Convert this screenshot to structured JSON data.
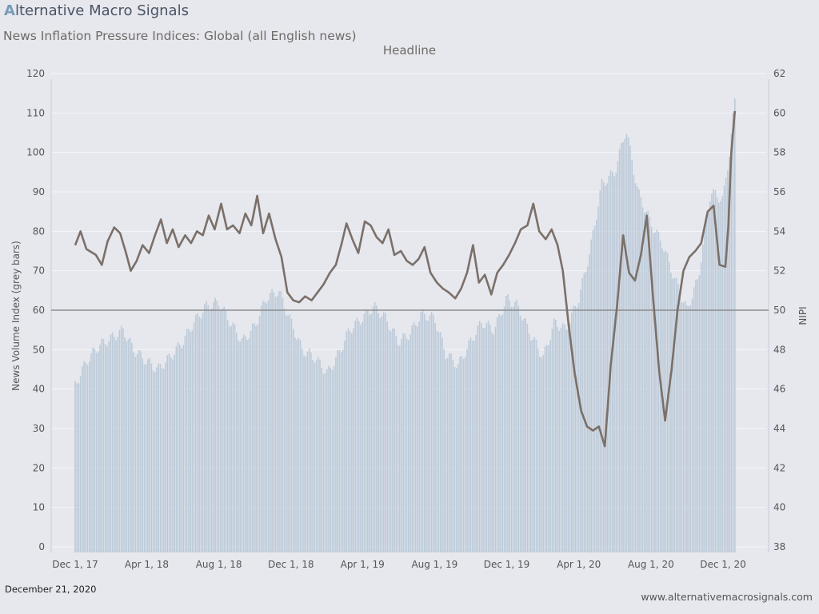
{
  "brand": {
    "logo_mark": "A",
    "logo_text": "lternative Macro Signals"
  },
  "title": "News Inflation Pressure Indices: Global (all English news)",
  "subtitle": "Headline",
  "footer": {
    "date": "December 21, 2020",
    "website": "www.alternativemacrosignals.com"
  },
  "colors": {
    "background": "#e6e8ee",
    "bars": "#bccad8",
    "line": "#7b7068",
    "refline": "#8c8c8c",
    "grid": "#f5f6f9"
  },
  "chart_data": {
    "type": "bar+line",
    "left_axis": {
      "label": "News Volume Index (grey bars)",
      "ylim": [
        0,
        120
      ],
      "ticks": [
        0,
        10,
        20,
        30,
        40,
        50,
        60,
        70,
        80,
        90,
        100,
        110,
        120
      ]
    },
    "right_axis": {
      "label": "NIPI",
      "ylim": [
        38,
        62
      ],
      "ticks": [
        38,
        40,
        42,
        44,
        46,
        48,
        50,
        52,
        54,
        56,
        58,
        60,
        62
      ]
    },
    "x_ticks": [
      "Dec 1, 17",
      "Apr 1, 18",
      "Aug 1, 18",
      "Dec 1, 18",
      "Apr 1, 19",
      "Aug 1, 19",
      "Dec 1, 19",
      "Apr 1, 20",
      "Aug 1, 20",
      "Dec 1, 20"
    ],
    "reference_line": 50,
    "volume_series": [
      [
        "2017-12-01",
        41
      ],
      [
        "2017-12-20",
        47
      ],
      [
        "2018-01-10",
        51
      ],
      [
        "2018-02-01",
        53
      ],
      [
        "2018-02-20",
        55
      ],
      [
        "2018-03-10",
        50
      ],
      [
        "2018-04-01",
        47
      ],
      [
        "2018-04-20",
        45
      ],
      [
        "2018-05-10",
        48
      ],
      [
        "2018-06-01",
        52
      ],
      [
        "2018-06-20",
        57
      ],
      [
        "2018-07-10",
        61
      ],
      [
        "2018-08-01",
        62
      ],
      [
        "2018-08-20",
        57
      ],
      [
        "2018-09-10",
        52
      ],
      [
        "2018-10-01",
        56
      ],
      [
        "2018-10-20",
        63
      ],
      [
        "2018-11-10",
        65
      ],
      [
        "2018-12-01",
        57
      ],
      [
        "2018-12-20",
        50
      ],
      [
        "2019-01-10",
        48
      ],
      [
        "2019-02-01",
        44
      ],
      [
        "2019-02-20",
        49
      ],
      [
        "2019-03-10",
        55
      ],
      [
        "2019-04-01",
        58
      ],
      [
        "2019-04-20",
        61
      ],
      [
        "2019-05-10",
        58
      ],
      [
        "2019-06-01",
        52
      ],
      [
        "2019-06-20",
        54
      ],
      [
        "2019-07-10",
        59
      ],
      [
        "2019-08-01",
        58
      ],
      [
        "2019-08-20",
        49
      ],
      [
        "2019-09-10",
        46
      ],
      [
        "2019-10-01",
        52
      ],
      [
        "2019-10-20",
        57
      ],
      [
        "2019-11-10",
        55
      ],
      [
        "2019-12-01",
        63
      ],
      [
        "2019-12-20",
        61
      ],
      [
        "2020-01-10",
        54
      ],
      [
        "2020-02-01",
        48
      ],
      [
        "2020-02-20",
        57
      ],
      [
        "2020-03-10",
        55
      ],
      [
        "2020-04-01",
        63
      ],
      [
        "2020-04-20",
        75
      ],
      [
        "2020-05-10",
        92
      ],
      [
        "2020-06-01",
        95
      ],
      [
        "2020-06-20",
        106
      ],
      [
        "2020-07-10",
        90
      ],
      [
        "2020-08-01",
        82
      ],
      [
        "2020-08-20",
        77
      ],
      [
        "2020-09-10",
        68
      ],
      [
        "2020-10-01",
        60
      ],
      [
        "2020-10-20",
        68
      ],
      [
        "2020-11-10",
        90
      ],
      [
        "2020-12-01",
        88
      ],
      [
        "2020-12-12",
        100
      ],
      [
        "2020-12-21",
        113
      ]
    ],
    "nipi_series": [
      [
        "2017-12-01",
        53.3
      ],
      [
        "2017-12-10",
        54.0
      ],
      [
        "2017-12-20",
        53.1
      ],
      [
        "2018-01-05",
        52.8
      ],
      [
        "2018-01-15",
        52.3
      ],
      [
        "2018-01-25",
        53.5
      ],
      [
        "2018-02-05",
        54.2
      ],
      [
        "2018-02-15",
        53.9
      ],
      [
        "2018-02-25",
        52.9
      ],
      [
        "2018-03-05",
        52.0
      ],
      [
        "2018-03-15",
        52.5
      ],
      [
        "2018-03-25",
        53.3
      ],
      [
        "2018-04-05",
        52.9
      ],
      [
        "2018-04-15",
        53.8
      ],
      [
        "2018-04-25",
        54.6
      ],
      [
        "2018-05-05",
        53.4
      ],
      [
        "2018-05-15",
        54.1
      ],
      [
        "2018-05-25",
        53.2
      ],
      [
        "2018-06-05",
        53.8
      ],
      [
        "2018-06-15",
        53.4
      ],
      [
        "2018-06-25",
        54.0
      ],
      [
        "2018-07-05",
        53.8
      ],
      [
        "2018-07-15",
        54.8
      ],
      [
        "2018-07-25",
        54.1
      ],
      [
        "2018-08-05",
        55.4
      ],
      [
        "2018-08-15",
        54.1
      ],
      [
        "2018-08-25",
        54.3
      ],
      [
        "2018-09-05",
        53.9
      ],
      [
        "2018-09-15",
        54.9
      ],
      [
        "2018-09-25",
        54.3
      ],
      [
        "2018-10-05",
        55.8
      ],
      [
        "2018-10-15",
        53.9
      ],
      [
        "2018-10-25",
        54.9
      ],
      [
        "2018-11-05",
        53.6
      ],
      [
        "2018-11-15",
        52.7
      ],
      [
        "2018-11-25",
        50.9
      ],
      [
        "2018-12-05",
        50.5
      ],
      [
        "2018-12-15",
        50.4
      ],
      [
        "2018-12-25",
        50.7
      ],
      [
        "2019-01-05",
        50.5
      ],
      [
        "2019-01-15",
        50.9
      ],
      [
        "2019-01-25",
        51.3
      ],
      [
        "2019-02-05",
        51.9
      ],
      [
        "2019-02-15",
        52.3
      ],
      [
        "2019-02-25",
        53.4
      ],
      [
        "2019-03-05",
        54.4
      ],
      [
        "2019-03-15",
        53.6
      ],
      [
        "2019-03-25",
        52.9
      ],
      [
        "2019-04-05",
        54.5
      ],
      [
        "2019-04-15",
        54.3
      ],
      [
        "2019-04-25",
        53.7
      ],
      [
        "2019-05-05",
        53.4
      ],
      [
        "2019-05-15",
        54.1
      ],
      [
        "2019-05-25",
        52.8
      ],
      [
        "2019-06-05",
        53.0
      ],
      [
        "2019-06-15",
        52.5
      ],
      [
        "2019-06-25",
        52.3
      ],
      [
        "2019-07-05",
        52.6
      ],
      [
        "2019-07-15",
        53.2
      ],
      [
        "2019-07-25",
        51.9
      ],
      [
        "2019-08-05",
        51.4
      ],
      [
        "2019-08-15",
        51.1
      ],
      [
        "2019-08-25",
        50.9
      ],
      [
        "2019-09-05",
        50.6
      ],
      [
        "2019-09-15",
        51.1
      ],
      [
        "2019-09-25",
        51.9
      ],
      [
        "2019-10-05",
        53.3
      ],
      [
        "2019-10-15",
        51.4
      ],
      [
        "2019-10-25",
        51.8
      ],
      [
        "2019-11-05",
        50.8
      ],
      [
        "2019-11-15",
        51.9
      ],
      [
        "2019-11-25",
        52.3
      ],
      [
        "2019-12-05",
        52.8
      ],
      [
        "2019-12-15",
        53.4
      ],
      [
        "2019-12-25",
        54.1
      ],
      [
        "2020-01-05",
        54.3
      ],
      [
        "2020-01-15",
        55.4
      ],
      [
        "2020-01-25",
        54.0
      ],
      [
        "2020-02-05",
        53.6
      ],
      [
        "2020-02-15",
        54.1
      ],
      [
        "2020-02-25",
        53.3
      ],
      [
        "2020-03-05",
        52.0
      ],
      [
        "2020-03-15",
        49.2
      ],
      [
        "2020-03-25",
        46.8
      ],
      [
        "2020-04-05",
        44.9
      ],
      [
        "2020-04-15",
        44.1
      ],
      [
        "2020-04-25",
        43.9
      ],
      [
        "2020-05-05",
        44.1
      ],
      [
        "2020-05-15",
        43.1
      ],
      [
        "2020-05-25",
        47.2
      ],
      [
        "2020-06-05",
        50.3
      ],
      [
        "2020-06-15",
        53.8
      ],
      [
        "2020-06-25",
        51.9
      ],
      [
        "2020-07-05",
        51.5
      ],
      [
        "2020-07-15",
        52.8
      ],
      [
        "2020-07-25",
        54.8
      ],
      [
        "2020-08-05",
        50.5
      ],
      [
        "2020-08-15",
        46.9
      ],
      [
        "2020-08-25",
        44.4
      ],
      [
        "2020-09-05",
        47.0
      ],
      [
        "2020-09-15",
        50.0
      ],
      [
        "2020-09-25",
        52.0
      ],
      [
        "2020-10-05",
        52.7
      ],
      [
        "2020-10-15",
        53.0
      ],
      [
        "2020-10-25",
        53.4
      ],
      [
        "2020-11-05",
        55.0
      ],
      [
        "2020-11-15",
        55.3
      ],
      [
        "2020-11-25",
        52.3
      ],
      [
        "2020-12-05",
        52.2
      ],
      [
        "2020-12-10",
        54.3
      ],
      [
        "2020-12-15",
        58.0
      ],
      [
        "2020-12-21",
        60.1
      ]
    ]
  }
}
